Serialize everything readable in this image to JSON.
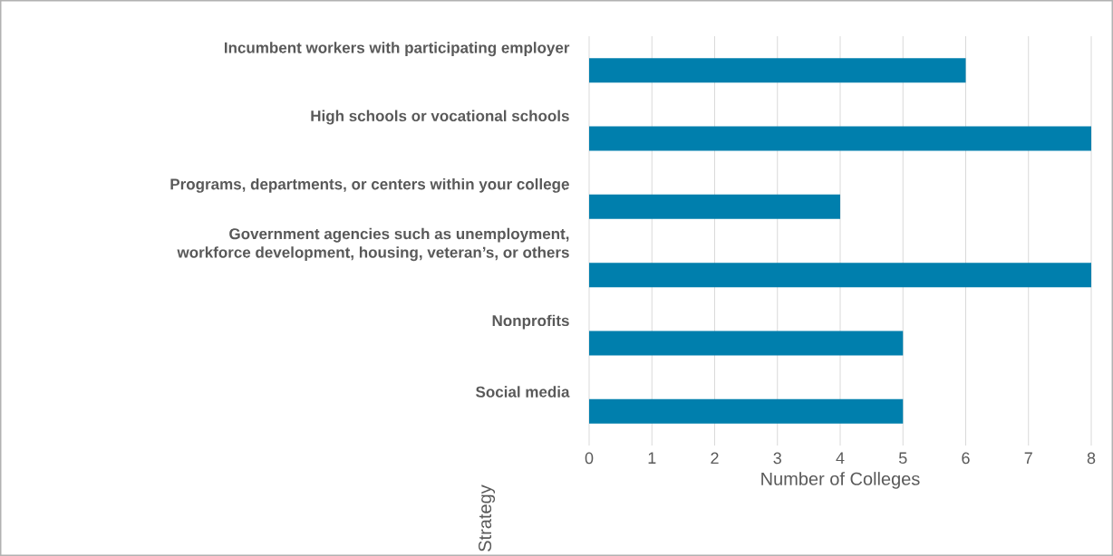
{
  "chart_data": {
    "type": "bar",
    "orientation": "horizontal",
    "categories": [
      "Incumbent workers with participating employer",
      "High schools or vocational schools",
      "Programs, departments, or centers within your college",
      "Government agencies such as unemployment,\nworkforce development, housing, veteran’s, or others",
      "Nonprofits",
      "Social media"
    ],
    "values": [
      6,
      8,
      4,
      8,
      5,
      5
    ],
    "color": "#007fad",
    "xlabel": "Number of Colleges",
    "ylabel": "Strategy",
    "xlim": [
      0,
      8
    ],
    "xticks": [
      0,
      1,
      2,
      3,
      4,
      5,
      6,
      7,
      8
    ],
    "grid": "x"
  }
}
